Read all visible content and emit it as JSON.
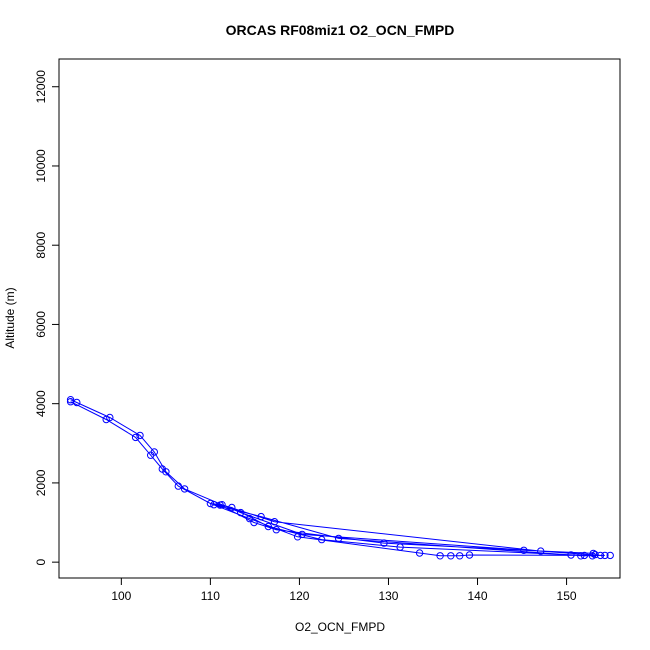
{
  "chart_data": {
    "type": "line",
    "title": "ORCAS RF08miz1 O2_OCN_FMPD",
    "xlabel": "O2_OCN_FMPD",
    "ylabel": "Altitude (m)",
    "xlim": [
      93,
      156
    ],
    "ylim": [
      -400,
      12700
    ],
    "xticks": [
      100,
      110,
      120,
      130,
      140,
      150
    ],
    "yticks": [
      0,
      2000,
      4000,
      6000,
      8000,
      10000,
      12000
    ],
    "grid": false,
    "legend": "none",
    "series": [
      {
        "color": "#0000ff",
        "marker": "open-circle",
        "points": [
          [
            94.3,
            4100
          ],
          [
            94.3,
            4050
          ],
          [
            95.0,
            4030
          ],
          [
            98.3,
            3600
          ],
          [
            98.7,
            3650
          ],
          [
            101.6,
            3150
          ],
          [
            102.1,
            3200
          ],
          [
            103.3,
            2700
          ],
          [
            103.7,
            2780
          ],
          [
            104.6,
            2350
          ],
          [
            105.0,
            2280
          ],
          [
            106.4,
            1920
          ],
          [
            107.1,
            1850
          ],
          [
            110.0,
            1480
          ],
          [
            110.4,
            1450
          ],
          [
            111.1,
            1440
          ],
          [
            111.3,
            1450
          ],
          [
            112.4,
            1380
          ],
          [
            113.4,
            1250
          ],
          [
            114.4,
            1100
          ],
          [
            114.9,
            1000
          ],
          [
            115.7,
            1150
          ],
          [
            116.5,
            900
          ],
          [
            117.2,
            1020
          ],
          [
            117.4,
            820
          ],
          [
            119.8,
            640
          ],
          [
            120.3,
            700
          ],
          [
            122.5,
            570
          ],
          [
            124.4,
            600
          ],
          [
            129.5,
            480
          ],
          [
            131.3,
            380
          ],
          [
            133.5,
            230
          ],
          [
            135.8,
            160
          ],
          [
            137.0,
            160
          ],
          [
            138.0,
            160
          ],
          [
            139.1,
            180
          ],
          [
            145.2,
            300
          ],
          [
            147.1,
            280
          ],
          [
            150.5,
            180
          ],
          [
            151.6,
            160
          ],
          [
            152.0,
            170
          ],
          [
            152.9,
            160
          ],
          [
            153.0,
            220
          ],
          [
            153.2,
            190
          ],
          [
            153.8,
            170
          ],
          [
            154.3,
            170
          ],
          [
            154.9,
            170
          ]
        ],
        "path": [
          [
            94.3,
            4050
          ],
          [
            98.3,
            3600
          ],
          [
            101.6,
            3150
          ],
          [
            103.3,
            2700
          ],
          [
            104.6,
            2350
          ],
          [
            106.4,
            1920
          ],
          [
            110.0,
            1480
          ],
          [
            112.4,
            1380
          ],
          [
            116.5,
            900
          ],
          [
            122.5,
            570
          ],
          [
            131.3,
            380
          ],
          [
            152.9,
            160
          ],
          [
            153.0,
            220
          ],
          [
            145.2,
            300
          ],
          [
            129.5,
            480
          ],
          [
            117.4,
            820
          ],
          [
            114.9,
            1000
          ],
          [
            111.1,
            1440
          ],
          [
            110.4,
            1450
          ],
          [
            115.7,
            1150
          ],
          [
            124.4,
            600
          ],
          [
            150.5,
            180
          ],
          [
            151.6,
            160
          ],
          [
            154.3,
            170
          ],
          [
            152.0,
            170
          ],
          [
            139.1,
            180
          ],
          [
            138.0,
            160
          ],
          [
            137.0,
            160
          ],
          [
            135.8,
            160
          ],
          [
            133.5,
            230
          ],
          [
            119.8,
            640
          ],
          [
            114.4,
            1100
          ],
          [
            110.0,
            1480
          ],
          [
            111.3,
            1450
          ],
          [
            117.2,
            1020
          ],
          [
            147.1,
            280
          ],
          [
            153.8,
            170
          ],
          [
            120.3,
            700
          ],
          [
            113.4,
            1250
          ],
          [
            107.1,
            1850
          ],
          [
            105.0,
            2280
          ],
          [
            103.7,
            2780
          ],
          [
            102.1,
            3200
          ],
          [
            98.7,
            3650
          ],
          [
            95.0,
            4030
          ],
          [
            94.3,
            4100
          ]
        ]
      }
    ]
  }
}
